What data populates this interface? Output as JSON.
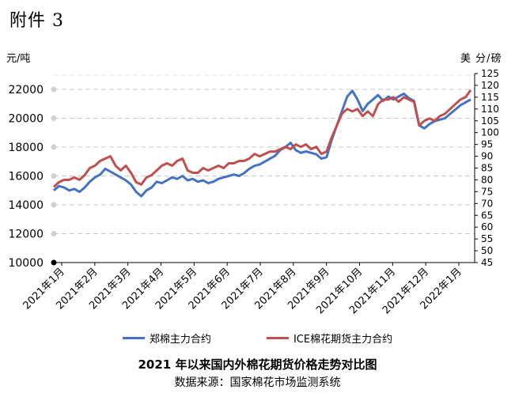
{
  "annex_label": "附件 3",
  "chart_data": {
    "type": "line",
    "title": "2021 年以来国内外棉花期货价格走势对比图",
    "source": "数据来源：国家棉花市场监测系统",
    "left_axis": {
      "unit": "元/吨",
      "ylim": [
        10000,
        22000
      ],
      "ticks": [
        "10000",
        "12000",
        "14000",
        "16000",
        "18000",
        "20000",
        "22000"
      ]
    },
    "right_axis": {
      "unit": "美 分/磅",
      "ylim": [
        45,
        125
      ],
      "ticks": [
        "45",
        "50",
        "55",
        "60",
        "65",
        "70",
        "75",
        "80",
        "85",
        "90",
        "95",
        "100",
        "105",
        "110",
        "115",
        "120",
        "125"
      ]
    },
    "x_labels": [
      "2021年1月",
      "2021年2月",
      "2021年3月",
      "2021年4月",
      "2021年5月",
      "2021年6月",
      "2021年7月",
      "2021年8月",
      "2021年9月",
      "2021年10月",
      "2021年11月",
      "2021年12月",
      "2022年1月"
    ],
    "grid": "horizontal-dashed",
    "legend_position": "bottom",
    "series": [
      {
        "name": "郑棉主力合约",
        "axis": "left",
        "color": "#4472c4",
        "values": [
          15000,
          15300,
          15200,
          15000,
          15100,
          14900,
          15200,
          15600,
          15900,
          16100,
          16500,
          16300,
          16100,
          15900,
          15700,
          15400,
          14900,
          14600,
          15000,
          15200,
          15600,
          15500,
          15700,
          15900,
          15800,
          16000,
          15700,
          15800,
          15600,
          15700,
          15500,
          15600,
          15800,
          15900,
          16000,
          16100,
          16000,
          16200,
          16500,
          16700,
          16800,
          17000,
          17200,
          17400,
          17800,
          18000,
          18300,
          17800,
          17600,
          17700,
          17600,
          17500,
          17200,
          17300,
          18500,
          19500,
          20500,
          21500,
          21900,
          21300,
          20500,
          21000,
          21300,
          21600,
          21200,
          21500,
          21300,
          21500,
          21700,
          21400,
          21200,
          19500,
          19300,
          19600,
          19800,
          19900,
          20000,
          20300,
          20600,
          20900,
          21100,
          21300
        ]
      },
      {
        "name": "ICE棉花期货主力合约",
        "axis": "right",
        "color": "#c0504d",
        "values": [
          77,
          79,
          80,
          80,
          81,
          80,
          82,
          85,
          86,
          88,
          89,
          90,
          86,
          84,
          86,
          83,
          79,
          78,
          81,
          82,
          84,
          86,
          87,
          86,
          88,
          89,
          84,
          83,
          83,
          85,
          84,
          85,
          86,
          85,
          87,
          87,
          88,
          88,
          89,
          91,
          90,
          91,
          92,
          92,
          93,
          94,
          93,
          95,
          94,
          95,
          93,
          94,
          91,
          92,
          98,
          103,
          108,
          110,
          109,
          110,
          107,
          109,
          107,
          112,
          114,
          114,
          115,
          113,
          115,
          114,
          113,
          103,
          105,
          106,
          105,
          107,
          108,
          110,
          112,
          114,
          115,
          118
        ]
      }
    ]
  }
}
